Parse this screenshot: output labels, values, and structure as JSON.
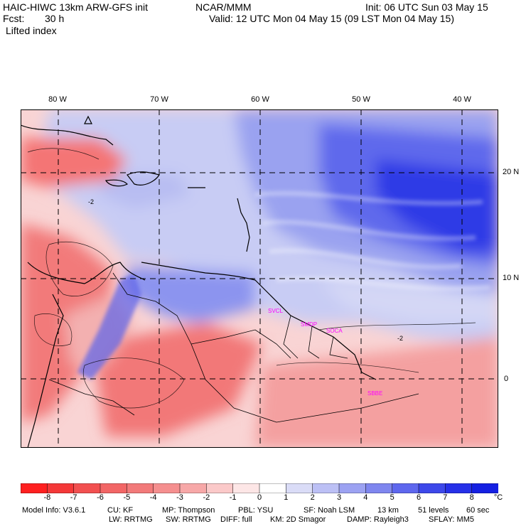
{
  "header": {
    "model": "HAIC-HIWC 13km ARW-GFS init",
    "org": "NCAR/MMM",
    "init": "Init: 06 UTC Sun 03 May 15",
    "fcst_label": "Fcst:",
    "fcst_value": "30 h",
    "valid": "Valid: 12 UTC Mon 04 May 15 (09 LST Mon 04 May 15)",
    "field": "Lifted index"
  },
  "map": {
    "lon_labels": [
      "80 W",
      "70 W",
      "60 W",
      "50 W",
      "40 W"
    ],
    "lat_labels": [
      "20 N",
      "10 N",
      "0"
    ],
    "stations": [
      "SVCL",
      "SMDP",
      "SOCA",
      "SBBE"
    ],
    "contour_labels": [
      "-2",
      "-2"
    ],
    "grid": "dashed"
  },
  "colorbar": {
    "labels": [
      "-8",
      "-7",
      "-6",
      "-5",
      "-4",
      "-3",
      "-2",
      "-1",
      "0",
      "1",
      "2",
      "3",
      "4",
      "5",
      "6",
      "7",
      "8"
    ],
    "unit": "°C",
    "colors": [
      "#ff2020",
      "#f43838",
      "#f25050",
      "#f26666",
      "#f27a7a",
      "#f58f8f",
      "#f7a8a8",
      "#fbc9c9",
      "#fde6e6",
      "#ffffff",
      "#dadcf7",
      "#bcc0f5",
      "#9ca2f2",
      "#7f86ef",
      "#5e67ee",
      "#3d48ea",
      "#2630e8",
      "#1520e2"
    ]
  },
  "footer": {
    "line1": [
      "Model Info: V3.6.1",
      "CU: KF",
      "MP: Thompson",
      "PBL: YSU",
      "SF: Noah LSM",
      "13 km",
      "51 levels",
      "60 sec"
    ],
    "line2": [
      "LW: RRTMG",
      "SW: RRTMG",
      "DIFF: full",
      "KM: 2D Smagor",
      "DAMP: Rayleigh3",
      "SFLAY: MM5"
    ]
  }
}
